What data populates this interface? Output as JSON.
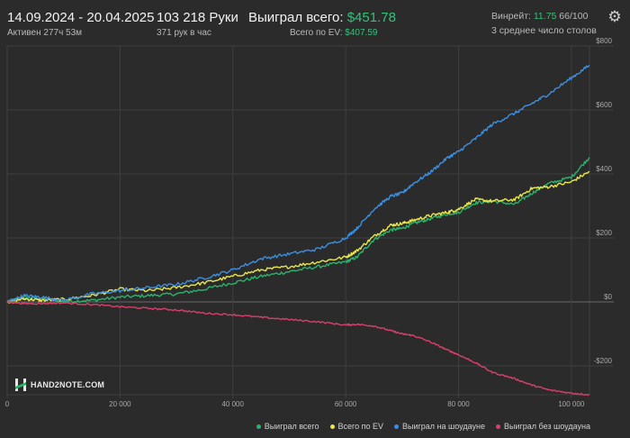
{
  "header": {
    "date_range": "14.09.2024 - 20.04.2025",
    "active": "Активен 277ч 53м",
    "hands": "103 218 Руки",
    "hands_per_hour": "371 рук в час",
    "won_total_label": "Выиграл всего:",
    "won_total_value": "$451.78",
    "ev_label": "Всего по EV:",
    "ev_value": "$407.59",
    "winrate_label": "Винрейт:",
    "winrate_value": "11.75",
    "winrate_suffix": "66/100",
    "avg_tables": "3 среднее число столов"
  },
  "logo": {
    "text": "HAND2NOTE.COM"
  },
  "colors": {
    "background": "#2b2b2b",
    "grid": "#3f3f3f",
    "zero_line": "#6a6a6a",
    "won_total": "#2bb36b",
    "ev": "#e8e64a",
    "showdown": "#3c8fe0",
    "no_showdown": "#d8406a"
  },
  "chart_data": {
    "type": "line",
    "xlim": [
      0,
      103218
    ],
    "ylim": [
      -290,
      800
    ],
    "x_ticks": [
      0,
      20000,
      40000,
      60000,
      80000,
      100000
    ],
    "x_tick_labels": [
      "0",
      "20 000",
      "40 000",
      "60 000",
      "80 000",
      "100 000"
    ],
    "y_ticks": [
      800,
      600,
      400,
      200,
      0,
      -200
    ],
    "y_tick_labels": [
      "$800",
      "$600",
      "$400",
      "$200",
      "$0",
      "-$200"
    ],
    "grid": true,
    "legend_position": "bottom-right",
    "x": [
      0,
      3000,
      6000,
      10000,
      15000,
      20000,
      25000,
      30000,
      35000,
      40000,
      45000,
      50000,
      55000,
      60000,
      62000,
      65000,
      68000,
      70000,
      72000,
      75000,
      78000,
      80000,
      83000,
      86000,
      90000,
      93000,
      96000,
      100000,
      103218
    ],
    "series": [
      {
        "name": "Выиграл всего",
        "color_key": "won_total",
        "values": [
          0,
          15,
          10,
          2,
          5,
          15,
          20,
          25,
          40,
          60,
          80,
          95,
          110,
          125,
          140,
          195,
          225,
          230,
          245,
          260,
          275,
          280,
          310,
          315,
          305,
          340,
          370,
          390,
          452
        ]
      },
      {
        "name": "Всего по EV",
        "color_key": "ev",
        "values": [
          0,
          10,
          5,
          8,
          20,
          40,
          35,
          45,
          60,
          80,
          100,
          110,
          125,
          140,
          160,
          205,
          240,
          245,
          255,
          270,
          280,
          290,
          320,
          315,
          320,
          355,
          360,
          375,
          408
        ]
      },
      {
        "name": "Выиграл на шоудауне",
        "color_key": "showdown",
        "values": [
          0,
          20,
          15,
          5,
          25,
          35,
          45,
          55,
          75,
          100,
          135,
          150,
          165,
          200,
          230,
          290,
          330,
          340,
          370,
          405,
          450,
          470,
          510,
          555,
          590,
          620,
          650,
          700,
          740
        ]
      },
      {
        "name": "Выиграл без шоудауна",
        "color_key": "no_showdown",
        "values": [
          0,
          -5,
          -5,
          -3,
          -8,
          -15,
          -20,
          -25,
          -35,
          -40,
          -48,
          -55,
          -62,
          -72,
          -70,
          -75,
          -90,
          -100,
          -105,
          -125,
          -150,
          -165,
          -190,
          -220,
          -240,
          -260,
          -275,
          -285,
          -290
        ]
      }
    ]
  }
}
